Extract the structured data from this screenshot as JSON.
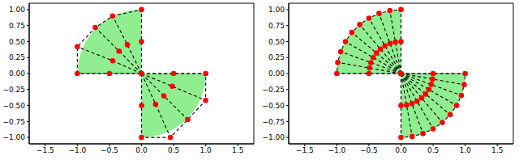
{
  "chart_data": [
    {
      "type": "scatter",
      "color": "#90ee90",
      "marker": "o",
      "line_style": "dashed",
      "xlim": [
        -1.75,
        1.75
      ],
      "ylim": [
        -1.1,
        1.1
      ],
      "xticks": [
        {
          "value": -1.5,
          "label": "−1.5"
        },
        {
          "value": -1,
          "label": "−1.0"
        },
        {
          "value": -0.5,
          "label": "−0.5"
        },
        {
          "value": 0,
          "label": "0.0"
        },
        0.5,
        {
          "value": 1,
          "label": "1.0"
        },
        1.5
      ],
      "yticks": [
        {
          "value": -1,
          "label": "−1.00"
        },
        {
          "value": -0.75,
          "label": "−0.75"
        },
        {
          "value": -0.5,
          "label": "−0.50"
        },
        {
          "value": -0.25,
          "label": "−0.25"
        },
        {
          "value": 0,
          "label": "0.00"
        },
        0.25,
        {
          "value": 0.5,
          "label": "0.50"
        },
        0.75,
        {
          "value": 1,
          "label": "1.00"
        }
      ],
      "sectors": [
        {
          "center": [
            0,
            0
          ],
          "radius": 1,
          "start": 90,
          "end": 180
        },
        {
          "center": [
            0,
            0
          ],
          "radius": 1,
          "start": 270,
          "end": 360
        }
      ],
      "meshes": [
        {
          "origin": [
            0,
            0
          ],
          "rays": [
            [
              [
                0,
                0.5
              ],
              [
                0,
                1
              ]
            ],
            [
              [
                -0.22,
                0.45
              ],
              [
                -0.45,
                0.9
              ]
            ],
            [
              [
                -0.35,
                0.35
              ],
              [
                -0.72,
                0.72
              ]
            ],
            [
              [
                -0.45,
                0.2
              ],
              [
                -1,
                0.42
              ]
            ],
            [
              [
                -0.5,
                0
              ],
              [
                -1,
                0
              ]
            ]
          ]
        },
        {
          "origin": [
            0,
            0
          ],
          "rays": [
            [
              [
                0,
                -0.5
              ],
              [
                0,
                -1
              ]
            ],
            [
              [
                0.22,
                -0.48
              ],
              [
                0.45,
                -1
              ]
            ],
            [
              [
                0.35,
                -0.35
              ],
              [
                0.72,
                -0.72
              ]
            ],
            [
              [
                0.48,
                -0.2
              ],
              [
                1,
                -0.42
              ]
            ],
            [
              [
                0.5,
                0
              ],
              [
                1,
                0
              ]
            ]
          ]
        }
      ]
    },
    {
      "type": "scatter",
      "color": "#90ee90",
      "marker": "o",
      "line_style": "dashed",
      "xlim": [
        -1.75,
        1.75
      ],
      "ylim": [
        -1.1,
        1.1
      ],
      "xticks": [
        {
          "value": -1.5,
          "label": "−1.5"
        },
        {
          "value": -1,
          "label": "−1.0"
        },
        {
          "value": -0.5,
          "label": "−0.5"
        },
        {
          "value": 0,
          "label": "0.0"
        },
        0.5,
        {
          "value": 1,
          "label": "1.0"
        },
        1.5
      ],
      "yticks": [
        {
          "value": -1,
          "label": "−1.00"
        },
        {
          "value": -0.75,
          "label": "−0.75"
        },
        {
          "value": -0.5,
          "label": "−0.50"
        },
        {
          "value": -0.25,
          "label": "−0.25"
        },
        {
          "value": 0,
          "label": "0.00"
        },
        0.25,
        {
          "value": 0.5,
          "label": "0.50"
        },
        0.75,
        {
          "value": 1,
          "label": "1.00"
        }
      ],
      "sectors": [
        {
          "center": [
            0,
            0
          ],
          "radius": 1,
          "start": 90,
          "end": 180
        },
        {
          "center": [
            0,
            0
          ],
          "radius": 1,
          "start": 270,
          "end": 360
        }
      ],
      "meshes": [
        {
          "origin": [
            0,
            0
          ],
          "rays": [
            [
              [
                0,
                0.5
              ],
              [
                0,
                1
              ]
            ],
            [
              [
                -0.087,
                0.492
              ],
              [
                -0.174,
                0.985
              ]
            ],
            [
              [
                -0.171,
                0.47
              ],
              [
                -0.342,
                0.94
              ]
            ],
            [
              [
                -0.25,
                0.433
              ],
              [
                -0.5,
                0.866
              ]
            ],
            [
              [
                -0.321,
                0.383
              ],
              [
                -0.643,
                0.766
              ]
            ],
            [
              [
                -0.383,
                0.321
              ],
              [
                -0.766,
                0.643
              ]
            ],
            [
              [
                -0.433,
                0.25
              ],
              [
                -0.866,
                0.5
              ]
            ],
            [
              [
                -0.47,
                0.171
              ],
              [
                -0.94,
                0.342
              ]
            ],
            [
              [
                -0.492,
                0.087
              ],
              [
                -0.985,
                0.174
              ]
            ],
            [
              [
                -0.5,
                0
              ],
              [
                -1,
                0
              ]
            ]
          ]
        },
        {
          "origin": [
            0,
            0
          ],
          "rays": [
            [
              [
                0,
                -0.5
              ],
              [
                0,
                -1
              ]
            ],
            [
              [
                0.087,
                -0.492
              ],
              [
                0.174,
                -0.985
              ]
            ],
            [
              [
                0.171,
                -0.47
              ],
              [
                0.342,
                -0.94
              ]
            ],
            [
              [
                0.25,
                -0.433
              ],
              [
                0.5,
                -0.866
              ]
            ],
            [
              [
                0.321,
                -0.383
              ],
              [
                0.643,
                -0.766
              ]
            ],
            [
              [
                0.383,
                -0.321
              ],
              [
                0.766,
                -0.643
              ]
            ],
            [
              [
                0.433,
                -0.25
              ],
              [
                0.866,
                -0.5
              ]
            ],
            [
              [
                0.47,
                -0.171
              ],
              [
                0.94,
                -0.342
              ]
            ],
            [
              [
                0.492,
                -0.087
              ],
              [
                0.985,
                -0.174
              ]
            ],
            [
              [
                0.5,
                0
              ],
              [
                1,
                0
              ]
            ]
          ]
        }
      ]
    }
  ]
}
